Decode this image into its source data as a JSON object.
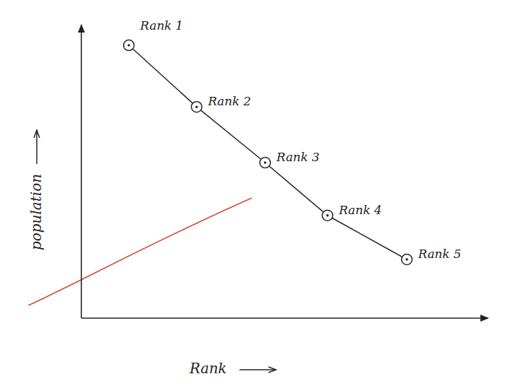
{
  "chart_data": {
    "type": "line",
    "x_label": "Rank",
    "y_label": "population",
    "x": [
      0.7,
      1.7,
      2.71,
      3.63,
      4.8
    ],
    "values": [
      9.3,
      7.2,
      5.3,
      3.5,
      2.0
    ],
    "labels": [
      "Rank 1",
      "Rank 2",
      "Rank 3",
      "Rank 4",
      "Rank 5"
    ],
    "xlim": [
      0,
      6
    ],
    "ylim": [
      0,
      10
    ],
    "xticks": [],
    "yticks": [],
    "tick_labels": false,
    "grid": false,
    "color": "#2a2a2a",
    "marker": "circle",
    "line_style": "solid"
  }
}
